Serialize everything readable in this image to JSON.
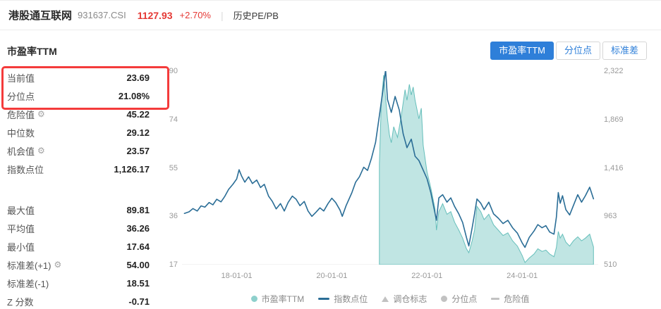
{
  "icons": {
    "gear": "⚙"
  },
  "colors": {
    "accent_red": "#e53935",
    "accent_blue": "#2e7fd9"
  },
  "header": {
    "index_name": "港股通互联网",
    "index_code": "931637.CSI",
    "price": "1127.93",
    "change": "+2.70%",
    "divider": "|",
    "nav_label": "历史PE/PB"
  },
  "panel": {
    "title": "市盈率TTM",
    "highlight": [
      {
        "label": "当前值",
        "value": "23.69"
      },
      {
        "label": "分位点",
        "value": "21.08%"
      }
    ],
    "group1": [
      {
        "label": "危险值",
        "value": "45.22"
      },
      {
        "label": "中位数",
        "value": "29.12"
      },
      {
        "label": "机会值",
        "value": "23.57"
      },
      {
        "label": "指数点位",
        "value": "1,126.17"
      }
    ],
    "group2": [
      {
        "label": "最大值",
        "value": "89.81"
      },
      {
        "label": "平均值",
        "value": "36.26"
      },
      {
        "label": "最小值",
        "value": "17.64"
      },
      {
        "label": "标准差(+1)",
        "value": "54.00"
      },
      {
        "label": "标准差(-1)",
        "value": "18.51"
      },
      {
        "label": "Z 分数",
        "value": "-0.71"
      }
    ]
  },
  "tabs": [
    {
      "label": "市盈率TTM",
      "active": true
    },
    {
      "label": "分位点",
      "active": false
    },
    {
      "label": "标准差",
      "active": false
    }
  ],
  "chart_data": {
    "type": "line",
    "x_range": [
      2016.85,
      2025.6
    ],
    "left_axis": {
      "title": "市盈率TTM",
      "min": 17,
      "max": 90,
      "ticks": [
        "90",
        "74",
        "55",
        "36",
        "17"
      ]
    },
    "right_axis": {
      "title": "指数点位",
      "min": 510,
      "max": 2322,
      "ticks": [
        "2,322",
        "1,869",
        "1,416",
        "963",
        "510"
      ]
    },
    "x_ticks": [
      {
        "label": "18-01-01",
        "year": 2018.0
      },
      {
        "label": "20-01-01",
        "year": 2020.0
      },
      {
        "label": "22-01-01",
        "year": 2022.0
      },
      {
        "label": "24-01-01",
        "year": 2024.0
      }
    ],
    "series": [
      {
        "name": "市盈率TTM",
        "type": "area",
        "axis": "left",
        "color": "#66bfbb",
        "fill": "rgba(140,208,204,0.55)",
        "points": [
          [
            2021.0,
            55
          ],
          [
            2021.04,
            78
          ],
          [
            2021.09,
            88.5
          ],
          [
            2021.13,
            80
          ],
          [
            2021.17,
            72
          ],
          [
            2021.21,
            66
          ],
          [
            2021.25,
            63
          ],
          [
            2021.3,
            69
          ],
          [
            2021.38,
            65
          ],
          [
            2021.46,
            73
          ],
          [
            2021.54,
            83
          ],
          [
            2021.58,
            79
          ],
          [
            2021.63,
            85
          ],
          [
            2021.67,
            81
          ],
          [
            2021.71,
            84
          ],
          [
            2021.75,
            79
          ],
          [
            2021.83,
            72
          ],
          [
            2021.88,
            76
          ],
          [
            2021.92,
            62
          ],
          [
            2022.0,
            52
          ],
          [
            2022.08,
            46
          ],
          [
            2022.17,
            38
          ],
          [
            2022.2,
            30
          ],
          [
            2022.25,
            37
          ],
          [
            2022.33,
            40
          ],
          [
            2022.42,
            36
          ],
          [
            2022.5,
            37
          ],
          [
            2022.58,
            33
          ],
          [
            2022.67,
            30
          ],
          [
            2022.75,
            27
          ],
          [
            2022.83,
            23
          ],
          [
            2022.88,
            21.5
          ],
          [
            2022.95,
            26
          ],
          [
            2023.0,
            30
          ],
          [
            2023.05,
            39
          ],
          [
            2023.13,
            37
          ],
          [
            2023.2,
            34
          ],
          [
            2023.3,
            36
          ],
          [
            2023.4,
            32
          ],
          [
            2023.5,
            30
          ],
          [
            2023.6,
            28
          ],
          [
            2023.7,
            29
          ],
          [
            2023.8,
            26
          ],
          [
            2023.9,
            24
          ],
          [
            2024.0,
            20.5
          ],
          [
            2024.06,
            17.8
          ],
          [
            2024.15,
            19.5
          ],
          [
            2024.25,
            21
          ],
          [
            2024.33,
            23
          ],
          [
            2024.42,
            22
          ],
          [
            2024.5,
            22.5
          ],
          [
            2024.58,
            21
          ],
          [
            2024.67,
            20
          ],
          [
            2024.72,
            23.5
          ],
          [
            2024.76,
            29.5
          ],
          [
            2024.8,
            27
          ],
          [
            2024.85,
            28.5
          ],
          [
            2024.92,
            25.5
          ],
          [
            2025.0,
            24
          ],
          [
            2025.08,
            26
          ],
          [
            2025.17,
            27.5
          ],
          [
            2025.25,
            26
          ],
          [
            2025.33,
            27
          ],
          [
            2025.42,
            28.5
          ],
          [
            2025.5,
            23.69
          ]
        ]
      },
      {
        "name": "指数点位",
        "type": "line",
        "axis": "right",
        "color": "#2a6d96",
        "points": [
          [
            2016.9,
            990
          ],
          [
            2017.0,
            1005
          ],
          [
            2017.08,
            1035
          ],
          [
            2017.17,
            1012
          ],
          [
            2017.25,
            1060
          ],
          [
            2017.33,
            1048
          ],
          [
            2017.42,
            1092
          ],
          [
            2017.5,
            1070
          ],
          [
            2017.58,
            1122
          ],
          [
            2017.67,
            1098
          ],
          [
            2017.75,
            1150
          ],
          [
            2017.83,
            1215
          ],
          [
            2017.92,
            1262
          ],
          [
            2018.0,
            1312
          ],
          [
            2018.05,
            1398
          ],
          [
            2018.1,
            1342
          ],
          [
            2018.17,
            1282
          ],
          [
            2018.25,
            1332
          ],
          [
            2018.33,
            1270
          ],
          [
            2018.42,
            1302
          ],
          [
            2018.5,
            1232
          ],
          [
            2018.58,
            1262
          ],
          [
            2018.67,
            1152
          ],
          [
            2018.75,
            1102
          ],
          [
            2018.83,
            1032
          ],
          [
            2018.92,
            1082
          ],
          [
            2019.0,
            1012
          ],
          [
            2019.08,
            1092
          ],
          [
            2019.17,
            1152
          ],
          [
            2019.25,
            1122
          ],
          [
            2019.33,
            1062
          ],
          [
            2019.42,
            1102
          ],
          [
            2019.5,
            1012
          ],
          [
            2019.58,
            962
          ],
          [
            2019.67,
            1002
          ],
          [
            2019.75,
            1042
          ],
          [
            2019.83,
            1012
          ],
          [
            2019.92,
            1082
          ],
          [
            2020.0,
            1132
          ],
          [
            2020.08,
            1092
          ],
          [
            2020.17,
            1022
          ],
          [
            2020.22,
            962
          ],
          [
            2020.3,
            1062
          ],
          [
            2020.42,
            1182
          ],
          [
            2020.5,
            1282
          ],
          [
            2020.58,
            1332
          ],
          [
            2020.67,
            1422
          ],
          [
            2020.75,
            1392
          ],
          [
            2020.83,
            1502
          ],
          [
            2020.92,
            1655
          ],
          [
            2021.0,
            1905
          ],
          [
            2021.08,
            2160
          ],
          [
            2021.13,
            2335
          ],
          [
            2021.17,
            2055
          ],
          [
            2021.25,
            1935
          ],
          [
            2021.33,
            2085
          ],
          [
            2021.42,
            1955
          ],
          [
            2021.5,
            1735
          ],
          [
            2021.58,
            1605
          ],
          [
            2021.67,
            1685
          ],
          [
            2021.75,
            1525
          ],
          [
            2021.83,
            1485
          ],
          [
            2021.92,
            1395
          ],
          [
            2022.0,
            1315
          ],
          [
            2022.08,
            1185
          ],
          [
            2022.2,
            925
          ],
          [
            2022.25,
            1135
          ],
          [
            2022.33,
            1165
          ],
          [
            2022.42,
            1095
          ],
          [
            2022.5,
            1135
          ],
          [
            2022.58,
            1055
          ],
          [
            2022.67,
            985
          ],
          [
            2022.75,
            905
          ],
          [
            2022.83,
            765
          ],
          [
            2022.88,
            685
          ],
          [
            2022.95,
            855
          ],
          [
            2023.0,
            985
          ],
          [
            2023.05,
            1125
          ],
          [
            2023.13,
            1085
          ],
          [
            2023.2,
            1025
          ],
          [
            2023.3,
            1095
          ],
          [
            2023.4,
            985
          ],
          [
            2023.5,
            945
          ],
          [
            2023.6,
            895
          ],
          [
            2023.7,
            925
          ],
          [
            2023.8,
            855
          ],
          [
            2023.9,
            805
          ],
          [
            2024.0,
            715
          ],
          [
            2024.06,
            672
          ],
          [
            2024.15,
            765
          ],
          [
            2024.25,
            825
          ],
          [
            2024.33,
            885
          ],
          [
            2024.42,
            855
          ],
          [
            2024.5,
            875
          ],
          [
            2024.58,
            815
          ],
          [
            2024.67,
            795
          ],
          [
            2024.72,
            955
          ],
          [
            2024.76,
            1185
          ],
          [
            2024.8,
            1085
          ],
          [
            2024.85,
            1155
          ],
          [
            2024.92,
            1025
          ],
          [
            2025.0,
            975
          ],
          [
            2025.08,
            1065
          ],
          [
            2025.17,
            1165
          ],
          [
            2025.25,
            1095
          ],
          [
            2025.33,
            1155
          ],
          [
            2025.42,
            1235
          ],
          [
            2025.5,
            1126
          ]
        ]
      }
    ],
    "legend": [
      {
        "label": "市盈率TTM",
        "marker": "circle",
        "color": "#8ed0cc"
      },
      {
        "label": "指数点位",
        "marker": "line",
        "color": "#2a6d96"
      },
      {
        "label": "调仓标志",
        "marker": "triangle",
        "color": "#c2c2c2"
      },
      {
        "label": "分位点",
        "marker": "circle",
        "color": "#c2c2c2"
      },
      {
        "label": "危险值",
        "marker": "dash",
        "color": "#c2c2c2"
      }
    ]
  }
}
